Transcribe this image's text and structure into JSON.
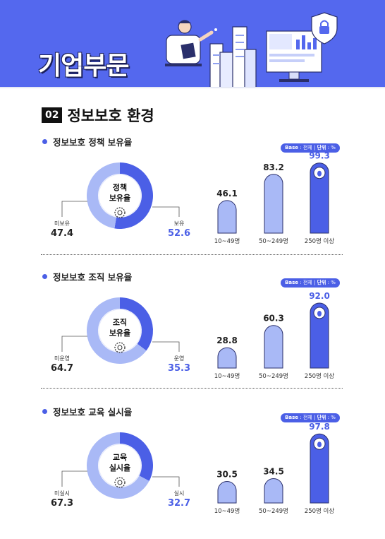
{
  "banner": {
    "title": "기업부문"
  },
  "section": {
    "number": "02",
    "title": "정보보호 환경"
  },
  "base_note": {
    "label": "Base",
    "base_value": "전체",
    "unit_label": "단위",
    "unit_value": "%"
  },
  "colors": {
    "primary": "#4b5fe6",
    "light": "#a9b9f6",
    "banner": "#5468ee",
    "text": "#1c1c28"
  },
  "chart_data": [
    {
      "type": "bar",
      "title": "정보보호 정책 보유율",
      "donut": {
        "center_label": [
          "정책",
          "보유율"
        ],
        "segments": [
          {
            "name": "보유",
            "value": 52.6,
            "color": "#4b5fe6"
          },
          {
            "name": "미보유",
            "value": 47.4,
            "color": "#a9b9f6"
          }
        ]
      },
      "categories": [
        "10~49명",
        "50~249명",
        "250명 이상"
      ],
      "values": [
        46.1,
        83.2,
        99.3
      ],
      "highlight_index": 2
    },
    {
      "type": "bar",
      "title": "정보보호 조직 보유율",
      "donut": {
        "center_label": [
          "조직",
          "보유율"
        ],
        "segments": [
          {
            "name": "운영",
            "value": 35.3,
            "color": "#4b5fe6"
          },
          {
            "name": "미운영",
            "value": 64.7,
            "color": "#a9b9f6"
          }
        ]
      },
      "categories": [
        "10~49명",
        "50~249명",
        "250명 이상"
      ],
      "values": [
        28.8,
        60.3,
        92.0
      ],
      "highlight_index": 2
    },
    {
      "type": "bar",
      "title": "정보보호 교육 실시율",
      "donut": {
        "center_label": [
          "교육",
          "실시율"
        ],
        "segments": [
          {
            "name": "실시",
            "value": 32.7,
            "color": "#4b5fe6"
          },
          {
            "name": "미실시",
            "value": 67.3,
            "color": "#a9b9f6"
          }
        ]
      },
      "categories": [
        "10~49명",
        "50~249명",
        "250명 이상"
      ],
      "values": [
        30.5,
        34.5,
        97.8
      ],
      "highlight_index": 2
    }
  ]
}
